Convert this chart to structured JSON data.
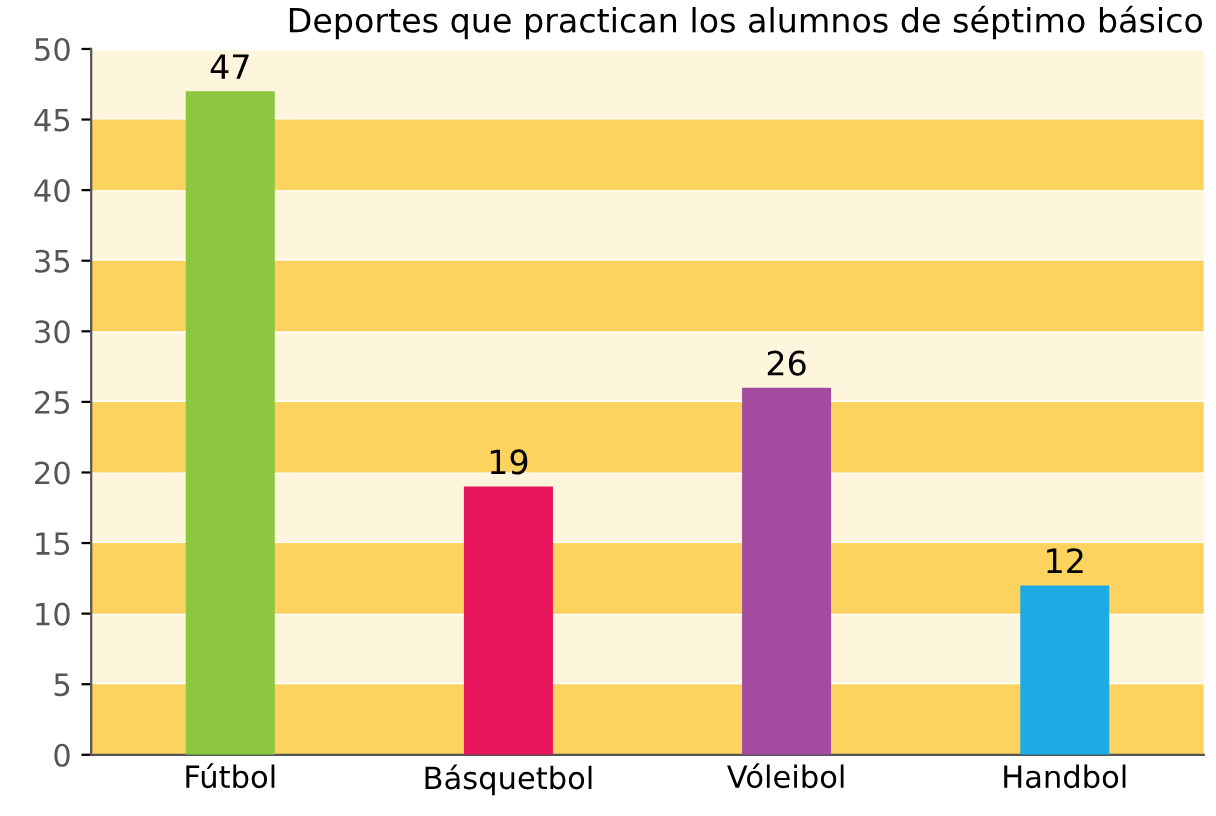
{
  "chart_data": {
    "type": "bar",
    "title": "Deportes que practican los alumnos de séptimo básico",
    "categories": [
      "Fútbol",
      "Básquetbol",
      "Vóleibol",
      "Handbol"
    ],
    "values": [
      47,
      19,
      26,
      12
    ],
    "colors": [
      "#8dc63f",
      "#e8175d",
      "#a24b9f",
      "#1eaae2"
    ],
    "ylim": [
      0,
      50
    ],
    "yticks": [
      0,
      5,
      10,
      15,
      20,
      25,
      30,
      35,
      40,
      45,
      50
    ],
    "data_labels": true,
    "grid": "y",
    "bands": [
      {
        "axis": "y",
        "from": 0,
        "to": 5,
        "color": "#fcd35e"
      },
      {
        "axis": "y",
        "from": 10,
        "to": 15,
        "color": "#fcd35e"
      },
      {
        "axis": "y",
        "from": 20,
        "to": 25,
        "color": "#fcd35e"
      },
      {
        "axis": "y",
        "from": 30,
        "to": 35,
        "color": "#fcd35e"
      },
      {
        "axis": "y",
        "from": 40,
        "to": 45,
        "color": "#fcd35e"
      }
    ]
  }
}
